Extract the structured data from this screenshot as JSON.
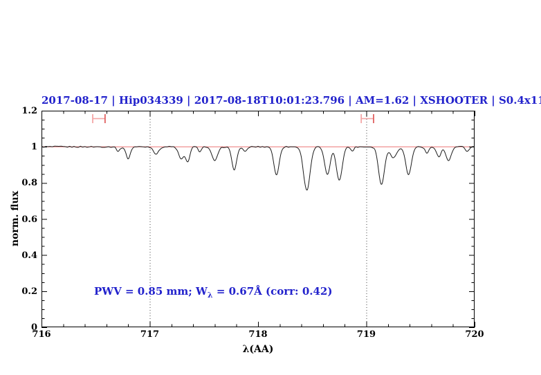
{
  "chart_data": {
    "type": "line",
    "title": "2017-08-17 | Hip034339 | 2017-08-18T10:01:23.796 | AM=1.62 | XSHOOTER | S0.4x11",
    "xlabel": "λ(AA)",
    "ylabel": "norm. flux",
    "xlim": [
      716,
      720
    ],
    "ylim": [
      0,
      1.2
    ],
    "x_major_ticks": [
      716,
      717,
      718,
      719,
      720
    ],
    "x_tick_labels": [
      "716",
      "717",
      "718",
      "719",
      "720"
    ],
    "x_minor_step": 0.2,
    "y_major_ticks": [
      0,
      0.2,
      0.4,
      0.6,
      0.8,
      1,
      1.2
    ],
    "y_tick_labels": [
      "0",
      "0.2",
      "0.4",
      "0.6",
      "0.8",
      "1",
      "1.2"
    ],
    "y_minor_step": 0.05,
    "grid": false,
    "continuum_level": 1.0,
    "dotted_guides_x": [
      717,
      719
    ],
    "range_markers": [
      {
        "x_center": 716.53,
        "half_width": 0.057,
        "y": 1.156,
        "cap_half_height": 0.025
      },
      {
        "x_center": 719.01,
        "half_width": 0.057,
        "y": 1.156,
        "cap_half_height": 0.025
      }
    ],
    "absorption_lines": [
      {
        "center": 716.71,
        "depth": 0.025,
        "sigma": 0.016
      },
      {
        "center": 716.8,
        "depth": 0.065,
        "sigma": 0.02
      },
      {
        "center": 717.06,
        "depth": 0.04,
        "sigma": 0.024
      },
      {
        "center": 717.29,
        "depth": 0.068,
        "sigma": 0.024
      },
      {
        "center": 717.35,
        "depth": 0.08,
        "sigma": 0.02
      },
      {
        "center": 717.46,
        "depth": 0.025,
        "sigma": 0.015
      },
      {
        "center": 717.6,
        "depth": 0.076,
        "sigma": 0.028
      },
      {
        "center": 717.78,
        "depth": 0.126,
        "sigma": 0.023
      },
      {
        "center": 717.88,
        "depth": 0.028,
        "sigma": 0.018
      },
      {
        "center": 718.17,
        "depth": 0.157,
        "sigma": 0.024
      },
      {
        "center": 718.45,
        "depth": 0.24,
        "sigma": 0.03
      },
      {
        "center": 718.64,
        "depth": 0.153,
        "sigma": 0.026
      },
      {
        "center": 718.75,
        "depth": 0.183,
        "sigma": 0.027
      },
      {
        "center": 718.87,
        "depth": 0.022,
        "sigma": 0.015
      },
      {
        "center": 719.14,
        "depth": 0.21,
        "sigma": 0.027
      },
      {
        "center": 719.25,
        "depth": 0.06,
        "sigma": 0.03
      },
      {
        "center": 719.39,
        "depth": 0.155,
        "sigma": 0.026
      },
      {
        "center": 719.56,
        "depth": 0.035,
        "sigma": 0.018
      },
      {
        "center": 719.67,
        "depth": 0.056,
        "sigma": 0.02
      },
      {
        "center": 719.76,
        "depth": 0.076,
        "sigma": 0.025
      },
      {
        "center": 719.93,
        "depth": 0.025,
        "sigma": 0.018
      }
    ],
    "noise_amplitude": 0.0038,
    "annotation": {
      "pre": "PWV = 0.85 mm; W",
      "sub": "λ",
      "post": " = 0.67Å (corr: 0.42)",
      "x": 716.5,
      "y": 0.19
    },
    "colors": {
      "text_accent": "#2222cc",
      "continuum": "#ee8080",
      "marker_light": "#f4a6a6",
      "marker_dark": "#e06060",
      "spectrum": "#1a1a1a",
      "axis": "#000000",
      "guide": "#444444"
    }
  }
}
